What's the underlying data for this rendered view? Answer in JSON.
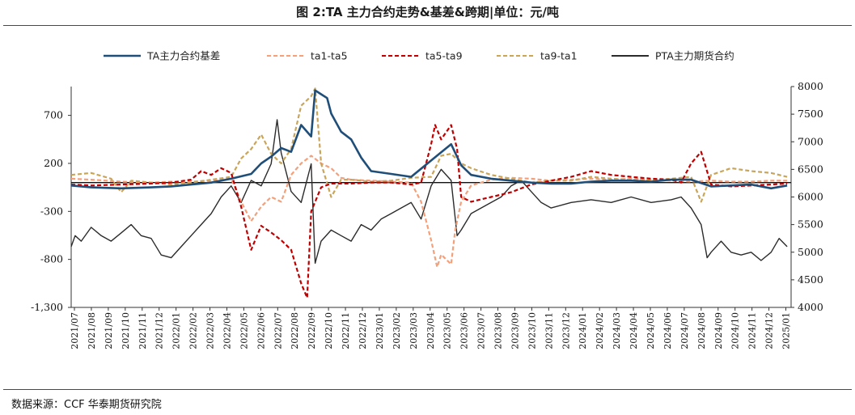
{
  "title": "图 2:TA 主力合约走势&基差&跨期|单位：元/吨",
  "source": "数据来源：CCF  华泰期货研究院",
  "colors": {
    "basis": "#1f4e79",
    "ta1_ta5": "#f4a07a",
    "ta5_ta9": "#c00000",
    "ta9_ta1": "#c9a55a",
    "pta": "#2b2b2b",
    "rule": "#b01c1c"
  },
  "chart_data": {
    "type": "line",
    "title": "TA 主力合约走势&基差&跨期",
    "xlabel": "",
    "ylabel_left": "",
    "ylabel_right": "",
    "y_left_lim": [
      -1300,
      1000
    ],
    "y_left_ticks": [
      "700",
      "200",
      "-300",
      "-800",
      "-1,300"
    ],
    "y_left_tick_values": [
      700,
      200,
      -300,
      -800,
      -1300
    ],
    "y_right_lim": [
      4000,
      8000
    ],
    "y_right_ticks": [
      "8000",
      "7500",
      "7000",
      "6500",
      "6000",
      "5500",
      "5000",
      "4500",
      "4000"
    ],
    "y_right_tick_values": [
      8000,
      7500,
      7000,
      6500,
      6000,
      5500,
      5000,
      4500,
      4000
    ],
    "zero_line": 0,
    "categories": [
      "2021/07",
      "2021/08",
      "2021/09",
      "2021/10",
      "2021/11",
      "2021/12",
      "2022/01",
      "2022/02",
      "2022/03",
      "2022/04",
      "2022/05",
      "2022/06",
      "2022/07",
      "2022/08",
      "2022/09",
      "2022/10",
      "2022/11",
      "2022/12",
      "2023/01",
      "2023/02",
      "2023/03",
      "2023/04",
      "2023/05",
      "2023/06",
      "2023/07",
      "2023/08",
      "2023/09",
      "2023/10",
      "2023/11",
      "2023/12",
      "2024/01",
      "2024/02",
      "2024/03",
      "2024/04",
      "2024/05",
      "2024/06",
      "2024/07",
      "2024/08",
      "2024/09",
      "2024/10",
      "2024/11",
      "2024/12",
      "2025/01"
    ],
    "x_lim": [
      2021.5,
      2025.1
    ],
    "series": [
      {
        "name": "TA主力合约基差",
        "axis": "left",
        "style": "solid",
        "color_key": "basis",
        "points": [
          [
            2021.5,
            -30
          ],
          [
            2021.6,
            -50
          ],
          [
            2021.75,
            -60
          ],
          [
            2021.9,
            -50
          ],
          [
            2022.0,
            -40
          ],
          [
            2022.1,
            -20
          ],
          [
            2022.2,
            0
          ],
          [
            2022.3,
            40
          ],
          [
            2022.4,
            90
          ],
          [
            2022.45,
            200
          ],
          [
            2022.5,
            270
          ],
          [
            2022.55,
            360
          ],
          [
            2022.6,
            320
          ],
          [
            2022.65,
            600
          ],
          [
            2022.7,
            480
          ],
          [
            2022.72,
            960
          ],
          [
            2022.75,
            920
          ],
          [
            2022.78,
            880
          ],
          [
            2022.8,
            720
          ],
          [
            2022.85,
            530
          ],
          [
            2022.9,
            450
          ],
          [
            2022.95,
            260
          ],
          [
            2023.0,
            120
          ],
          [
            2023.1,
            90
          ],
          [
            2023.2,
            60
          ],
          [
            2023.3,
            230
          ],
          [
            2023.37,
            350
          ],
          [
            2023.4,
            400
          ],
          [
            2023.45,
            180
          ],
          [
            2023.5,
            80
          ],
          [
            2023.6,
            40
          ],
          [
            2023.7,
            20
          ],
          [
            2023.8,
            0
          ],
          [
            2023.9,
            -10
          ],
          [
            2024.0,
            -10
          ],
          [
            2024.1,
            10
          ],
          [
            2024.2,
            20
          ],
          [
            2024.3,
            20
          ],
          [
            2024.4,
            10
          ],
          [
            2024.5,
            30
          ],
          [
            2024.6,
            30
          ],
          [
            2024.7,
            -40
          ],
          [
            2024.8,
            -30
          ],
          [
            2024.9,
            -20
          ],
          [
            2025.0,
            -60
          ],
          [
            2025.08,
            -30
          ]
        ]
      },
      {
        "name": "ta1-ta5",
        "axis": "left",
        "style": "dash",
        "color_key": "ta1_ta5",
        "points": [
          [
            2021.5,
            40
          ],
          [
            2021.6,
            30
          ],
          [
            2021.75,
            10
          ],
          [
            2021.9,
            0
          ],
          [
            2022.0,
            10
          ],
          [
            2022.1,
            10
          ],
          [
            2022.2,
            20
          ],
          [
            2022.3,
            40
          ],
          [
            2022.35,
            -200
          ],
          [
            2022.4,
            -400
          ],
          [
            2022.45,
            -250
          ],
          [
            2022.5,
            -150
          ],
          [
            2022.55,
            -200
          ],
          [
            2022.6,
            80
          ],
          [
            2022.65,
            200
          ],
          [
            2022.7,
            280
          ],
          [
            2022.75,
            200
          ],
          [
            2022.8,
            150
          ],
          [
            2022.85,
            50
          ],
          [
            2022.9,
            30
          ],
          [
            2023.0,
            20
          ],
          [
            2023.1,
            10
          ],
          [
            2023.2,
            0
          ],
          [
            2023.25,
            -200
          ],
          [
            2023.3,
            -600
          ],
          [
            2023.33,
            -880
          ],
          [
            2023.35,
            -750
          ],
          [
            2023.4,
            -850
          ],
          [
            2023.42,
            -500
          ],
          [
            2023.45,
            -200
          ],
          [
            2023.5,
            -30
          ],
          [
            2023.6,
            30
          ],
          [
            2023.7,
            50
          ],
          [
            2023.8,
            40
          ],
          [
            2023.9,
            20
          ],
          [
            2024.0,
            30
          ],
          [
            2024.1,
            40
          ],
          [
            2024.2,
            30
          ],
          [
            2024.3,
            40
          ],
          [
            2024.4,
            30
          ],
          [
            2024.5,
            20
          ],
          [
            2024.6,
            10
          ],
          [
            2024.7,
            20
          ],
          [
            2024.8,
            10
          ],
          [
            2024.9,
            10
          ],
          [
            2025.0,
            20
          ],
          [
            2025.08,
            20
          ]
        ]
      },
      {
        "name": "ta5-ta9",
        "axis": "left",
        "style": "dash",
        "color_key": "ta5_ta9",
        "points": [
          [
            2021.5,
            -20
          ],
          [
            2021.6,
            -30
          ],
          [
            2021.75,
            -20
          ],
          [
            2021.9,
            -10
          ],
          [
            2022.0,
            0
          ],
          [
            2022.1,
            30
          ],
          [
            2022.15,
            120
          ],
          [
            2022.2,
            80
          ],
          [
            2022.25,
            150
          ],
          [
            2022.3,
            100
          ],
          [
            2022.35,
            -250
          ],
          [
            2022.4,
            -700
          ],
          [
            2022.45,
            -450
          ],
          [
            2022.5,
            -520
          ],
          [
            2022.55,
            -600
          ],
          [
            2022.6,
            -700
          ],
          [
            2022.65,
            -1050
          ],
          [
            2022.68,
            -1200
          ],
          [
            2022.7,
            -300
          ],
          [
            2022.75,
            -50
          ],
          [
            2022.8,
            -10
          ],
          [
            2022.9,
            -10
          ],
          [
            2023.0,
            0
          ],
          [
            2023.1,
            0
          ],
          [
            2023.2,
            -20
          ],
          [
            2023.25,
            0
          ],
          [
            2023.3,
            400
          ],
          [
            2023.32,
            600
          ],
          [
            2023.35,
            450
          ],
          [
            2023.4,
            600
          ],
          [
            2023.43,
            350
          ],
          [
            2023.45,
            -150
          ],
          [
            2023.5,
            -200
          ],
          [
            2023.6,
            -150
          ],
          [
            2023.7,
            -100
          ],
          [
            2023.8,
            -20
          ],
          [
            2023.9,
            20
          ],
          [
            2024.0,
            60
          ],
          [
            2024.1,
            120
          ],
          [
            2024.2,
            80
          ],
          [
            2024.3,
            60
          ],
          [
            2024.4,
            40
          ],
          [
            2024.5,
            30
          ],
          [
            2024.55,
            0
          ],
          [
            2024.6,
            200
          ],
          [
            2024.65,
            320
          ],
          [
            2024.7,
            -20
          ],
          [
            2024.8,
            -40
          ],
          [
            2024.9,
            -30
          ],
          [
            2025.0,
            -20
          ],
          [
            2025.08,
            -10
          ]
        ]
      },
      {
        "name": "ta9-ta1",
        "axis": "left",
        "style": "dash",
        "color_key": "ta9_ta1",
        "points": [
          [
            2021.5,
            80
          ],
          [
            2021.6,
            100
          ],
          [
            2021.7,
            40
          ],
          [
            2021.75,
            -100
          ],
          [
            2021.8,
            20
          ],
          [
            2021.9,
            0
          ],
          [
            2022.0,
            -20
          ],
          [
            2022.1,
            0
          ],
          [
            2022.2,
            30
          ],
          [
            2022.3,
            60
          ],
          [
            2022.35,
            250
          ],
          [
            2022.4,
            350
          ],
          [
            2022.45,
            500
          ],
          [
            2022.5,
            300
          ],
          [
            2022.55,
            200
          ],
          [
            2022.6,
            350
          ],
          [
            2022.65,
            800
          ],
          [
            2022.7,
            900
          ],
          [
            2022.72,
            980
          ],
          [
            2022.75,
            200
          ],
          [
            2022.8,
            -150
          ],
          [
            2022.85,
            30
          ],
          [
            2022.9,
            30
          ],
          [
            2023.0,
            10
          ],
          [
            2023.1,
            20
          ],
          [
            2023.2,
            50
          ],
          [
            2023.3,
            60
          ],
          [
            2023.35,
            280
          ],
          [
            2023.4,
            300
          ],
          [
            2023.45,
            200
          ],
          [
            2023.5,
            150
          ],
          [
            2023.6,
            80
          ],
          [
            2023.7,
            40
          ],
          [
            2023.8,
            0
          ],
          [
            2023.9,
            20
          ],
          [
            2024.0,
            20
          ],
          [
            2024.1,
            60
          ],
          [
            2024.2,
            40
          ],
          [
            2024.3,
            30
          ],
          [
            2024.4,
            20
          ],
          [
            2024.5,
            40
          ],
          [
            2024.6,
            60
          ],
          [
            2024.65,
            -200
          ],
          [
            2024.7,
            80
          ],
          [
            2024.8,
            150
          ],
          [
            2024.9,
            120
          ],
          [
            2025.0,
            100
          ],
          [
            2025.08,
            60
          ]
        ]
      },
      {
        "name": "PTA主力期货合约",
        "axis": "right",
        "style": "solid",
        "color_key": "pta",
        "points": [
          [
            2021.5,
            5100
          ],
          [
            2021.52,
            5300
          ],
          [
            2021.55,
            5200
          ],
          [
            2021.6,
            5450
          ],
          [
            2021.65,
            5300
          ],
          [
            2021.7,
            5200
          ],
          [
            2021.75,
            5350
          ],
          [
            2021.8,
            5500
          ],
          [
            2021.85,
            5300
          ],
          [
            2021.9,
            5250
          ],
          [
            2021.95,
            4950
          ],
          [
            2022.0,
            4900
          ],
          [
            2022.05,
            5100
          ],
          [
            2022.1,
            5300
          ],
          [
            2022.15,
            5500
          ],
          [
            2022.2,
            5700
          ],
          [
            2022.25,
            6000
          ],
          [
            2022.3,
            6200
          ],
          [
            2022.35,
            5900
          ],
          [
            2022.4,
            6300
          ],
          [
            2022.45,
            6200
          ],
          [
            2022.5,
            6600
          ],
          [
            2022.53,
            7400
          ],
          [
            2022.55,
            6800
          ],
          [
            2022.6,
            6100
          ],
          [
            2022.65,
            5900
          ],
          [
            2022.7,
            6600
          ],
          [
            2022.72,
            4800
          ],
          [
            2022.75,
            5200
          ],
          [
            2022.8,
            5400
          ],
          [
            2022.85,
            5300
          ],
          [
            2022.9,
            5200
          ],
          [
            2022.95,
            5500
          ],
          [
            2023.0,
            5400
          ],
          [
            2023.05,
            5600
          ],
          [
            2023.1,
            5700
          ],
          [
            2023.15,
            5800
          ],
          [
            2023.2,
            5900
          ],
          [
            2023.25,
            5600
          ],
          [
            2023.3,
            6200
          ],
          [
            2023.35,
            6500
          ],
          [
            2023.4,
            6300
          ],
          [
            2023.43,
            5300
          ],
          [
            2023.45,
            5400
          ],
          [
            2023.5,
            5700
          ],
          [
            2023.55,
            5800
          ],
          [
            2023.6,
            5900
          ],
          [
            2023.65,
            6000
          ],
          [
            2023.7,
            6200
          ],
          [
            2023.75,
            6300
          ],
          [
            2023.8,
            6100
          ],
          [
            2023.85,
            5900
          ],
          [
            2023.9,
            5800
          ],
          [
            2024.0,
            5900
          ],
          [
            2024.1,
            5950
          ],
          [
            2024.2,
            5900
          ],
          [
            2024.3,
            6000
          ],
          [
            2024.4,
            5900
          ],
          [
            2024.5,
            5950
          ],
          [
            2024.55,
            6000
          ],
          [
            2024.6,
            5800
          ],
          [
            2024.65,
            5500
          ],
          [
            2024.68,
            4900
          ],
          [
            2024.7,
            5000
          ],
          [
            2024.75,
            5200
          ],
          [
            2024.8,
            5000
          ],
          [
            2024.85,
            4950
          ],
          [
            2024.9,
            5000
          ],
          [
            2024.95,
            4850
          ],
          [
            2025.0,
            5000
          ],
          [
            2025.04,
            5250
          ],
          [
            2025.08,
            5100
          ]
        ]
      }
    ]
  }
}
